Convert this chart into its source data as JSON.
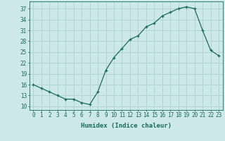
{
  "x": [
    0,
    1,
    2,
    3,
    4,
    5,
    6,
    7,
    8,
    9,
    10,
    11,
    12,
    13,
    14,
    15,
    16,
    17,
    18,
    19,
    20,
    21,
    22,
    23
  ],
  "y": [
    16,
    15,
    14,
    13,
    12,
    12,
    11,
    10.5,
    14,
    20,
    23.5,
    26,
    28.5,
    29.5,
    32,
    33,
    35,
    36,
    37,
    37.5,
    37,
    31,
    25.5,
    24
  ],
  "line_color": "#1a6b5a",
  "marker": "+",
  "bg_color": "#cce8e8",
  "grid_color": "#b0d0d0",
  "xlabel": "Humidex (Indice chaleur)",
  "yticks": [
    10,
    13,
    16,
    19,
    22,
    25,
    28,
    31,
    34,
    37
  ],
  "xticks": [
    0,
    1,
    2,
    3,
    4,
    5,
    6,
    7,
    8,
    9,
    10,
    11,
    12,
    13,
    14,
    15,
    16,
    17,
    18,
    19,
    20,
    21,
    22,
    23
  ],
  "xlim": [
    -0.5,
    23.5
  ],
  "ylim": [
    9,
    39
  ],
  "tick_color": "#1a6b5a",
  "label_fontsize": 6.5,
  "tick_fontsize": 5.5
}
